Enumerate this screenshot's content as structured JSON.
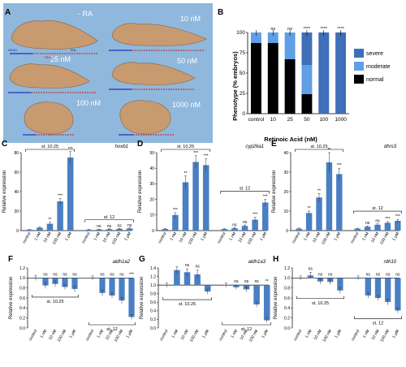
{
  "panel_a": {
    "letter": "A",
    "conditions": [
      "- RA",
      "10 nM",
      "25 nM",
      "50 nM",
      "100 nM",
      "1000 nM"
    ],
    "embryo_color": "#c79a70",
    "bg_color": "#8fb8dc",
    "markers": [
      "HEAD",
      "TAIL",
      "TRUNK"
    ]
  },
  "panel_b": {
    "letter": "B",
    "ylabel": "Phenotype (% embryos)",
    "xlabel": "Retinoic Acid (nM)",
    "categories": [
      "control",
      "10",
      "25",
      "50",
      "100",
      "1000"
    ],
    "ylim": [
      0,
      100
    ],
    "yticks": [
      "0",
      "25",
      "50",
      "75",
      "100"
    ],
    "series": [
      {
        "name": "severe",
        "color": "#3f6fb8",
        "values": [
          0,
          0,
          0,
          40,
          100,
          100
        ]
      },
      {
        "name": "moderate",
        "color": "#5f9fe6",
        "values": [
          13,
          13,
          33,
          36,
          0,
          0
        ]
      },
      {
        "name": "normal",
        "color": "#000000",
        "values": [
          87,
          87,
          67,
          24,
          0,
          0
        ]
      }
    ],
    "significance": [
      "",
      "ns",
      "ns",
      "****",
      "****",
      "****"
    ]
  },
  "chart_data": [
    {
      "id": "C",
      "type": "bar",
      "title": "hoxb1",
      "ylabel": "Relative expression",
      "ylim": [
        0,
        80
      ],
      "yticks": [
        "0",
        "20",
        "40",
        "60",
        "80"
      ],
      "stages": [
        "st. 10.25",
        "st. 12"
      ],
      "categories": [
        "control",
        "1 nM",
        "10 nM",
        "100 nM",
        "1 µM",
        "control",
        "1 nM",
        "10 nM",
        "100 nM",
        "1 µM"
      ],
      "values": [
        1,
        3,
        7,
        30,
        75,
        1,
        1.2,
        1.5,
        1.8,
        2.2
      ],
      "errors": [
        0.3,
        0.8,
        1.5,
        3,
        6,
        0.2,
        0.3,
        0.3,
        0.4,
        0.5
      ],
      "significance": [
        "",
        "",
        "**",
        "***",
        "***",
        "",
        "ns",
        "ns",
        "ns",
        "ns"
      ]
    },
    {
      "id": "D",
      "type": "bar",
      "title": "cyp26a1",
      "ylabel": "Relative expression",
      "ylim": [
        0,
        50
      ],
      "yticks": [
        "0",
        "10",
        "20",
        "30",
        "40",
        "50"
      ],
      "stages": [
        "st. 10.25",
        "st. 12"
      ],
      "categories": [
        "control",
        "1 nM",
        "10 nM",
        "100 nM",
        "1 µM",
        "control",
        "1 nM",
        "10 nM",
        "100 nM",
        "1 µM"
      ],
      "values": [
        1,
        10,
        31,
        44,
        42,
        1,
        1.5,
        3,
        7,
        18
      ],
      "errors": [
        0.3,
        1.5,
        4,
        4,
        4,
        0.2,
        0.4,
        0.6,
        1.5,
        2
      ],
      "significance": [
        "",
        "***",
        "**",
        "***",
        "***",
        "",
        "ns",
        "ns",
        "***",
        "***"
      ]
    },
    {
      "id": "E",
      "type": "bar",
      "title": "dhrs3",
      "ylabel": "Relative expression",
      "ylim": [
        0,
        40
      ],
      "yticks": [
        "0",
        "10",
        "20",
        "30",
        "40"
      ],
      "stages": [
        "st. 10.25",
        "st. 12"
      ],
      "categories": [
        "control",
        "1 nM",
        "10 nM",
        "100 nM",
        "1 µM",
        "control",
        "1 nM",
        "10 nM",
        "100 nM",
        "1 µM"
      ],
      "values": [
        1,
        9,
        17,
        35,
        29,
        1,
        2,
        3,
        4,
        5
      ],
      "errors": [
        0.3,
        1,
        2,
        5,
        3,
        0.2,
        0.4,
        0.5,
        0.6,
        0.8
      ],
      "significance": [
        "",
        "**",
        "**",
        "**",
        "***",
        "",
        "ns",
        "ns",
        "***",
        "***"
      ]
    },
    {
      "id": "F",
      "type": "bar",
      "title": "aldh1a2",
      "ylabel": "Relative expression",
      "ylim": [
        0,
        1.2
      ],
      "yticks": [
        "0.0",
        "0.2",
        "0.4",
        "0.6",
        "0.8",
        "1.0",
        "1.2"
      ],
      "stages": [
        "st. 10.25",
        "st. 12"
      ],
      "categories": [
        "control",
        "1 nM",
        "10 nM",
        "100 nM",
        "1 µM",
        "control",
        "1 nM",
        "10 nM",
        "100 nM",
        "1 µM"
      ],
      "values": [
        1,
        0.85,
        0.88,
        0.82,
        0.78,
        1,
        0.7,
        0.65,
        0.55,
        0.22
      ],
      "errors": [
        0.05,
        0.06,
        0.06,
        0.05,
        0.06,
        0.04,
        0.06,
        0.05,
        0.06,
        0.05
      ],
      "significance": [
        "",
        "ns",
        "ns",
        "ns",
        "ns",
        "",
        "ns",
        "ns",
        "ns",
        "***"
      ]
    },
    {
      "id": "G",
      "type": "bar",
      "title": "aldh1a3",
      "ylabel": "Relative expression",
      "ylim": [
        0,
        1.4
      ],
      "yticks": [
        "0.0",
        "0.2",
        "0.4",
        "0.6",
        "0.8",
        "1.0",
        "1.2",
        "1.4"
      ],
      "stages": [
        "st. 10.25",
        "st. 12"
      ],
      "categories": [
        "control",
        "1 nM",
        "10 nM",
        "100 nM",
        "1 µM",
        "control",
        "1 nM",
        "10 nM",
        "100 nM",
        "1 µM"
      ],
      "values": [
        1,
        1.35,
        1.3,
        1.25,
        0.85,
        1,
        0.95,
        0.9,
        0.55,
        0.18
      ],
      "errors": [
        0.05,
        0.08,
        0.08,
        0.1,
        0.06,
        0.05,
        0.05,
        0.06,
        0.06,
        0.05
      ],
      "significance": [
        "",
        "",
        "ns",
        "ns",
        "",
        "",
        "ns",
        "ns",
        "ns",
        "**"
      ]
    },
    {
      "id": "H",
      "type": "bar",
      "title": "rdh10",
      "ylabel": "Relative expression",
      "ylim": [
        0,
        1.2
      ],
      "yticks": [
        "0.0",
        "0.2",
        "0.4",
        "0.6",
        "0.8",
        "1.0",
        "1.2"
      ],
      "stages": [
        "st. 10.25",
        "st. 12"
      ],
      "categories": [
        "control",
        "1 nM",
        "10 nM",
        "100 nM",
        "1 µM",
        "control",
        "1 nM",
        "10 nM",
        "100 nM",
        "1 µM"
      ],
      "values": [
        1,
        1.05,
        0.93,
        0.92,
        0.75,
        1,
        0.65,
        0.6,
        0.52,
        0.35
      ],
      "errors": [
        0.04,
        0.06,
        0.05,
        0.05,
        0.06,
        0.04,
        0.05,
        0.05,
        0.06,
        0.05
      ],
      "significance": [
        "",
        "ns",
        "ns",
        "ns",
        "",
        "",
        "ns",
        "ns",
        "ns",
        "ns"
      ]
    }
  ]
}
